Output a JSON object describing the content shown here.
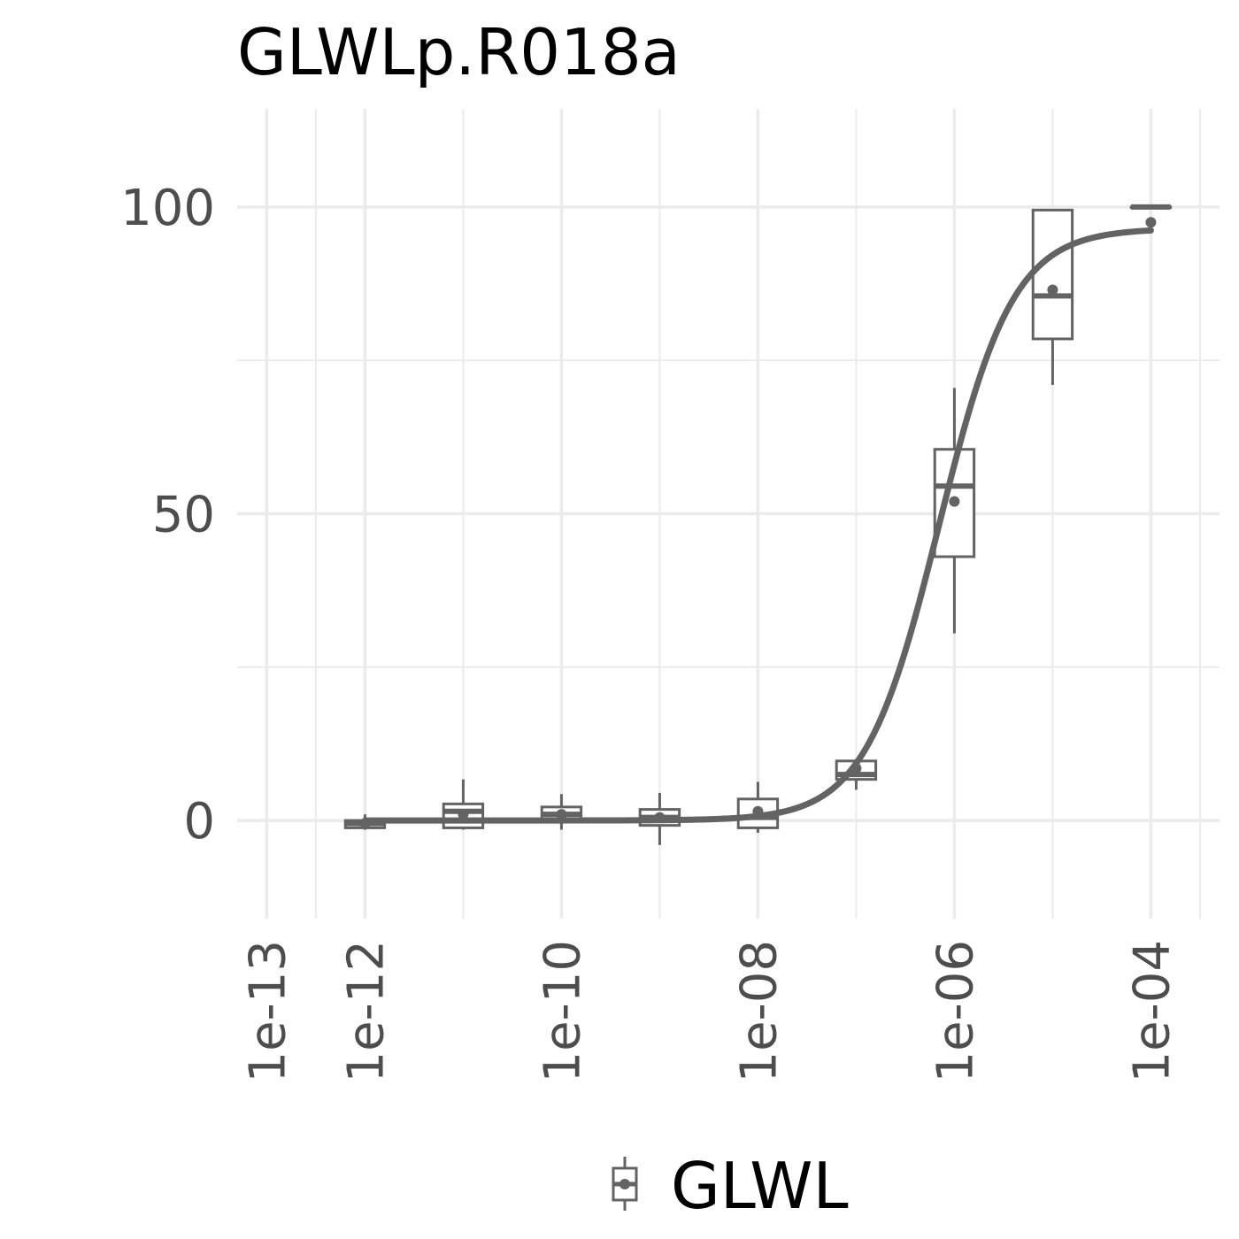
{
  "chart_data": {
    "type": "box",
    "title": "GLWLp.R018a",
    "xlabel": "",
    "ylabel": "",
    "x_scale": "log10",
    "xlim": [
      5e-14,
      0.0005
    ],
    "ylim": [
      -16,
      116
    ],
    "x_ticks": [
      1e-13,
      1e-12,
      1e-10,
      1e-08,
      1e-06,
      0.0001
    ],
    "x_tick_labels": [
      "1e-13",
      "1e-12",
      "1e-10",
      "1e-08",
      "1e-06",
      "1e-04"
    ],
    "y_ticks": [
      0,
      50,
      100
    ],
    "y_tick_labels": [
      "0",
      "50",
      "100"
    ],
    "grid": true,
    "legend": {
      "position": "bottom",
      "entries": [
        "GLWL"
      ]
    },
    "colors": {
      "series": "#636363",
      "grid": "#ebebeb",
      "tick_text": "#4d4d4d"
    },
    "series": [
      {
        "name": "GLWL",
        "boxes": [
          {
            "x": 1e-12,
            "min": -1.5,
            "q1": -1.2,
            "median": -0.5,
            "q3": 0,
            "max": 1,
            "mean": -0.5
          },
          {
            "x": 1e-11,
            "min": -1.5,
            "q1": -1.2,
            "median": 1.5,
            "q3": 2.7,
            "max": 6.7,
            "mean": 1
          },
          {
            "x": 1e-10,
            "min": -1.5,
            "q1": 0.3,
            "median": 1,
            "q3": 2.2,
            "max": 4.3,
            "mean": 1
          },
          {
            "x": 1e-09,
            "min": -4,
            "q1": -0.8,
            "median": 0.5,
            "q3": 1.8,
            "max": 4.5,
            "mean": 0.5
          },
          {
            "x": 1e-08,
            "min": -2,
            "q1": -1.2,
            "median": 0.5,
            "q3": 3.5,
            "max": 6.3,
            "mean": 1.5
          },
          {
            "x": 1e-07,
            "min": 5,
            "q1": 6.7,
            "median": 7.5,
            "q3": 9.7,
            "max": 10,
            "mean": 8.5
          },
          {
            "x": 1e-06,
            "min": 30.5,
            "q1": 43,
            "median": 54.5,
            "q3": 60.5,
            "max": 70.5,
            "mean": 52
          },
          {
            "x": 1e-05,
            "min": 71,
            "q1": 78.5,
            "median": 85.5,
            "q3": 99.5,
            "max": 99.5,
            "mean": 86.5
          },
          {
            "x": 0.0001,
            "min": 100,
            "q1": 100,
            "median": 100,
            "q3": 100,
            "max": 100,
            "mean": 97.5
          }
        ]
      }
    ],
    "fit": {
      "model": "4-parameter logistic",
      "bottom": 0,
      "top": 96.5,
      "ec50": 7e-07,
      "hill": 1.15,
      "x_range": [
        1e-12,
        0.0001
      ]
    }
  }
}
